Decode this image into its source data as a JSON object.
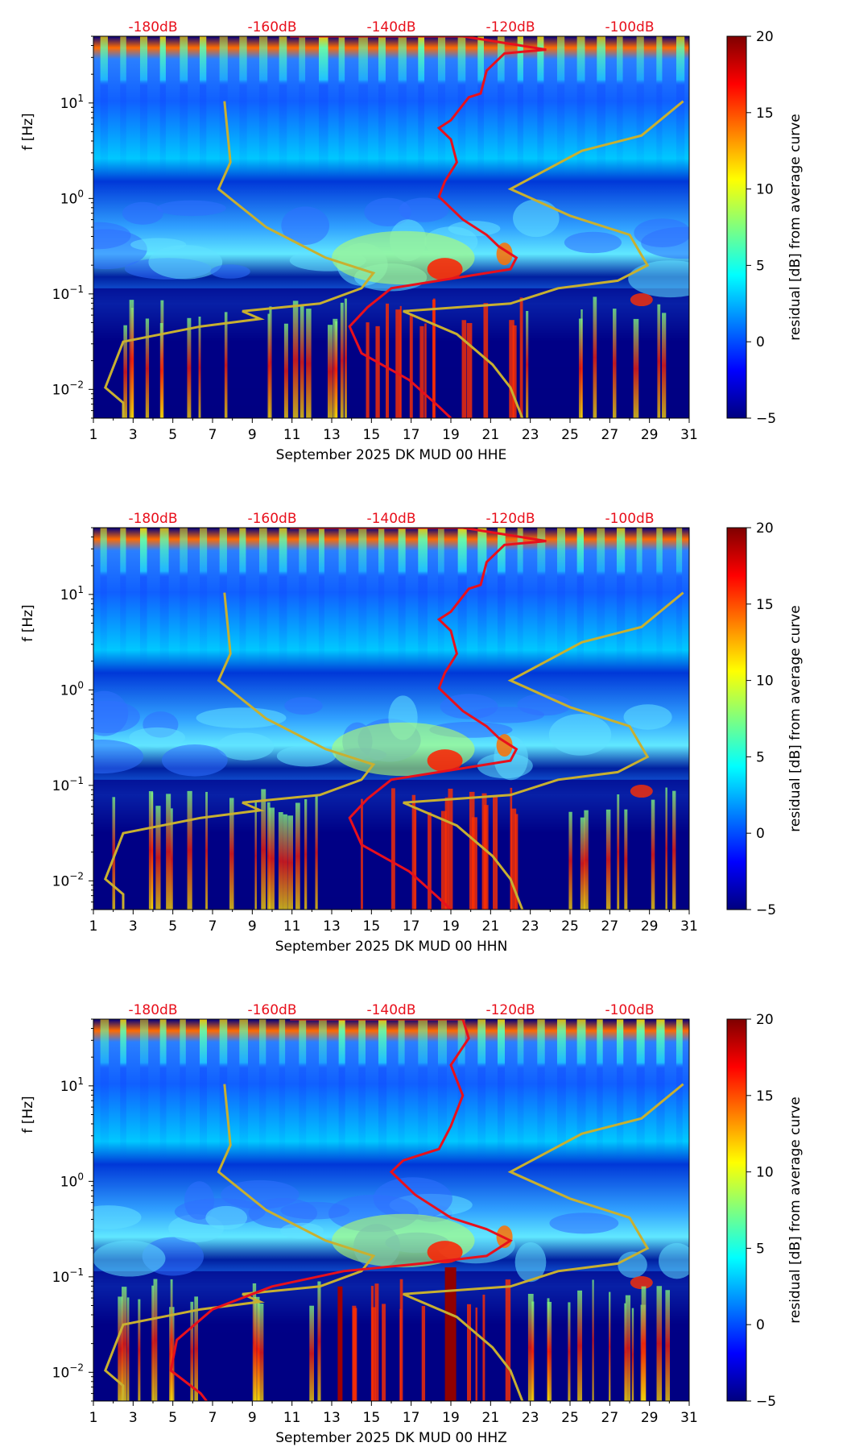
{
  "colors": {
    "psd_curve": "#e8101c",
    "model_curve": "#c8b030",
    "top_label": "#e8101c",
    "colormap": [
      "#00007f",
      "#0000ff",
      "#007fff",
      "#00ffff",
      "#7fff7f",
      "#ffff00",
      "#ff7f00",
      "#ff0000",
      "#7f0000"
    ]
  },
  "chart_data": [
    {
      "type": "heatmap",
      "xlabel": "September 2025 DK MUD 00 HHE",
      "ylabel": "f [Hz]",
      "x_ticks": [
        "1",
        "3",
        "5",
        "7",
        "9",
        "11",
        "13",
        "15",
        "17",
        "19",
        "21",
        "23",
        "25",
        "27",
        "29",
        "31"
      ],
      "y_ticks": [
        "10^-2",
        "10^-1",
        "10^0",
        "10^1"
      ],
      "xlim": [
        1,
        31
      ],
      "ylim": [
        0.005,
        50
      ],
      "y_scale": "log",
      "top_labels": [
        "-180dB",
        "-160dB",
        "-140dB",
        "-120dB",
        "-100dB"
      ],
      "colorbar": {
        "label": "residual [dB] from average curve",
        "ticks": [
          "−5",
          "0",
          "5",
          "10",
          "15",
          "20"
        ],
        "range": [
          -5,
          20
        ]
      }
    },
    {
      "type": "heatmap",
      "xlabel": "September 2025 DK MUD 00 HHN",
      "ylabel": "f [Hz]",
      "x_ticks": [
        "1",
        "3",
        "5",
        "7",
        "9",
        "11",
        "13",
        "15",
        "17",
        "19",
        "21",
        "23",
        "25",
        "27",
        "29",
        "31"
      ],
      "y_ticks": [
        "10^-2",
        "10^-1",
        "10^0",
        "10^1"
      ],
      "xlim": [
        1,
        31
      ],
      "ylim": [
        0.005,
        50
      ],
      "y_scale": "log",
      "top_labels": [
        "-180dB",
        "-160dB",
        "-140dB",
        "-120dB",
        "-100dB"
      ],
      "colorbar": {
        "label": "residual [dB] from average curve",
        "ticks": [
          "−5",
          "0",
          "5",
          "10",
          "15",
          "20"
        ],
        "range": [
          -5,
          20
        ]
      }
    },
    {
      "type": "heatmap",
      "xlabel": "September 2025 DK MUD 00 HHZ",
      "ylabel": "f [Hz]",
      "x_ticks": [
        "1",
        "3",
        "5",
        "7",
        "9",
        "11",
        "13",
        "15",
        "17",
        "19",
        "21",
        "23",
        "25",
        "27",
        "29",
        "31"
      ],
      "y_ticks": [
        "10^-2",
        "10^-1",
        "10^0",
        "10^1"
      ],
      "xlim": [
        1,
        31
      ],
      "ylim": [
        0.005,
        50
      ],
      "y_scale": "log",
      "top_labels": [
        "-180dB",
        "-160dB",
        "-140dB",
        "-120dB",
        "-100dB"
      ],
      "colorbar": {
        "label": "residual [dB] from average curve",
        "ticks": [
          "−5",
          "0",
          "5",
          "10",
          "15",
          "20"
        ],
        "range": [
          -5,
          20
        ]
      }
    }
  ]
}
